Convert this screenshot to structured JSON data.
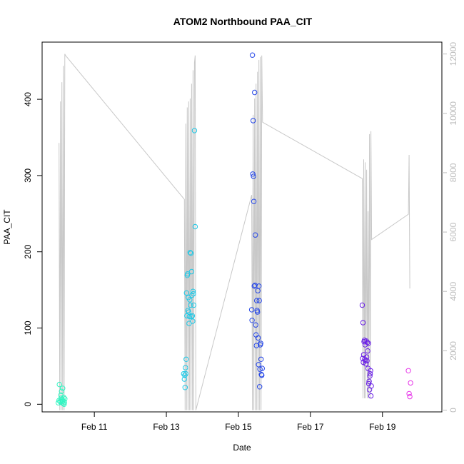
{
  "chart_data": {
    "type": "scatter",
    "title": "ATOM2 Northbound PAA_CIT",
    "xlabel": "Date",
    "ylabel": "PAA_CIT",
    "xlim": [
      9.55,
      20.65
    ],
    "ylim": [
      -10,
      475
    ],
    "y2lim": [
      -60,
      12400
    ],
    "x_ticks": [
      {
        "value": 11,
        "label": "Feb 11"
      },
      {
        "value": 13,
        "label": "Feb 13"
      },
      {
        "value": 15,
        "label": "Feb 15"
      },
      {
        "value": 17,
        "label": "Feb 17"
      },
      {
        "value": 19,
        "label": "Feb 19"
      }
    ],
    "y_ticks": [
      0,
      100,
      200,
      300,
      400
    ],
    "y2_ticks": [
      0,
      2000,
      4000,
      6000,
      8000,
      10000,
      12000
    ],
    "grid": false,
    "legend": "none",
    "colors": {
      "line": "#c8c8c8",
      "axis": "#000000",
      "right_axis": "#bdbdbd"
    },
    "secondary_line": [
      [
        10.02,
        9000
      ],
      [
        10.04,
        0
      ],
      [
        10.06,
        10400
      ],
      [
        10.08,
        0
      ],
      [
        10.1,
        11050
      ],
      [
        10.12,
        0
      ],
      [
        10.14,
        11600
      ],
      [
        10.16,
        0
      ],
      [
        10.18,
        12000
      ],
      [
        10.2,
        11950
      ],
      [
        13.5,
        7100
      ],
      [
        13.52,
        0
      ],
      [
        13.54,
        9650
      ],
      [
        13.56,
        0
      ],
      [
        13.58,
        10200
      ],
      [
        13.6,
        0
      ],
      [
        13.62,
        10400
      ],
      [
        13.64,
        0
      ],
      [
        13.66,
        10500
      ],
      [
        13.68,
        0
      ],
      [
        13.7,
        11000
      ],
      [
        13.72,
        0
      ],
      [
        13.74,
        11450
      ],
      [
        13.76,
        0
      ],
      [
        13.78,
        11700
      ],
      [
        13.8,
        11950
      ],
      [
        13.82,
        0
      ],
      [
        15.37,
        7250
      ],
      [
        15.39,
        0
      ],
      [
        15.41,
        9950
      ],
      [
        15.43,
        0
      ],
      [
        15.45,
        10500
      ],
      [
        15.47,
        0
      ],
      [
        15.49,
        11000
      ],
      [
        15.51,
        0
      ],
      [
        15.53,
        11400
      ],
      [
        15.55,
        0
      ],
      [
        15.57,
        11800
      ],
      [
        15.59,
        0
      ],
      [
        15.61,
        11900
      ],
      [
        15.63,
        0
      ],
      [
        15.65,
        11950
      ],
      [
        15.67,
        9700
      ],
      [
        18.44,
        7800
      ],
      [
        18.46,
        400
      ],
      [
        18.48,
        8450
      ],
      [
        18.5,
        400
      ],
      [
        18.52,
        8350
      ],
      [
        18.54,
        400
      ],
      [
        18.56,
        8100
      ],
      [
        18.58,
        400
      ],
      [
        18.6,
        6700
      ],
      [
        18.62,
        400
      ],
      [
        18.64,
        9300
      ],
      [
        18.66,
        400
      ],
      [
        18.68,
        9400
      ],
      [
        18.7,
        5750
      ],
      [
        19.72,
        6600
      ],
      [
        19.74,
        8600
      ],
      [
        19.76,
        4100
      ]
    ],
    "series": [
      {
        "color": "#33f5c2",
        "points": [
          [
            10.0,
            2
          ],
          [
            10.02,
            5
          ],
          [
            10.03,
            26
          ],
          [
            10.05,
            4
          ],
          [
            10.06,
            3
          ],
          [
            10.07,
            12
          ],
          [
            10.08,
            8
          ],
          [
            10.09,
            17
          ],
          [
            10.1,
            2
          ],
          [
            10.11,
            6
          ],
          [
            10.12,
            21
          ],
          [
            10.13,
            4
          ],
          [
            10.14,
            1
          ],
          [
            10.15,
            9
          ],
          [
            10.16,
            0
          ],
          [
            10.17,
            3
          ],
          [
            10.18,
            7
          ]
        ]
      },
      {
        "color": "#1fc8e6",
        "points": [
          [
            13.48,
            40
          ],
          [
            13.5,
            33
          ],
          [
            13.51,
            38
          ],
          [
            13.52,
            22
          ],
          [
            13.53,
            48
          ],
          [
            13.54,
            40
          ],
          [
            13.55,
            59
          ],
          [
            13.56,
            146
          ],
          [
            13.57,
            116
          ],
          [
            13.58,
            169
          ],
          [
            13.59,
            171
          ],
          [
            13.6,
            123
          ],
          [
            13.61,
            140
          ],
          [
            13.62,
            121
          ],
          [
            13.63,
            106
          ],
          [
            13.64,
            115
          ],
          [
            13.65,
            137
          ],
          [
            13.66,
            199
          ],
          [
            13.67,
            130
          ],
          [
            13.68,
            198
          ],
          [
            13.69,
            115
          ],
          [
            13.7,
            174
          ],
          [
            13.71,
            143
          ],
          [
            13.72,
            116
          ],
          [
            13.73,
            109
          ],
          [
            13.74,
            148
          ],
          [
            13.75,
            145
          ],
          [
            13.76,
            130
          ],
          [
            13.78,
            359
          ],
          [
            13.8,
            233
          ]
        ]
      },
      {
        "color": "#2446e8",
        "points": [
          [
            15.37,
            124
          ],
          [
            15.38,
            110
          ],
          [
            15.39,
            458
          ],
          [
            15.4,
            302
          ],
          [
            15.41,
            372
          ],
          [
            15.42,
            299
          ],
          [
            15.43,
            266
          ],
          [
            15.44,
            155
          ],
          [
            15.45,
            409
          ],
          [
            15.46,
            156
          ],
          [
            15.47,
            222
          ],
          [
            15.48,
            104
          ],
          [
            15.49,
            91
          ],
          [
            15.5,
            77
          ],
          [
            15.51,
            136
          ],
          [
            15.52,
            123
          ],
          [
            15.53,
            121
          ],
          [
            15.54,
            149
          ],
          [
            15.55,
            87
          ],
          [
            15.56,
            52
          ],
          [
            15.57,
            155
          ],
          [
            15.58,
            136
          ],
          [
            15.59,
            23
          ],
          [
            15.6,
            46
          ],
          [
            15.61,
            78
          ],
          [
            15.62,
            80
          ],
          [
            15.63,
            59
          ],
          [
            15.64,
            39
          ],
          [
            15.65,
            38
          ],
          [
            15.66,
            47
          ]
        ]
      },
      {
        "color": "#6a1fe6",
        "points": [
          [
            18.44,
            130
          ],
          [
            18.45,
            60
          ],
          [
            18.46,
            107
          ],
          [
            18.47,
            55
          ],
          [
            18.48,
            65
          ],
          [
            18.49,
            82
          ],
          [
            18.5,
            84
          ],
          [
            18.51,
            59
          ],
          [
            18.52,
            78
          ],
          [
            18.53,
            57
          ],
          [
            18.54,
            53
          ],
          [
            18.55,
            83
          ],
          [
            18.56,
            62
          ],
          [
            18.57,
            57
          ],
          [
            18.58,
            81
          ],
          [
            18.59,
            70
          ],
          [
            18.6,
            47
          ],
          [
            18.61,
            80
          ],
          [
            18.62,
            27
          ],
          [
            18.63,
            30
          ],
          [
            18.64,
            19
          ],
          [
            18.65,
            37
          ],
          [
            18.66,
            40
          ],
          [
            18.67,
            44
          ],
          [
            18.68,
            11
          ],
          [
            18.69,
            24
          ]
        ]
      },
      {
        "color": "#e635e8",
        "points": [
          [
            19.72,
            44
          ],
          [
            19.74,
            14
          ],
          [
            19.76,
            10
          ],
          [
            19.78,
            28
          ]
        ]
      }
    ]
  }
}
